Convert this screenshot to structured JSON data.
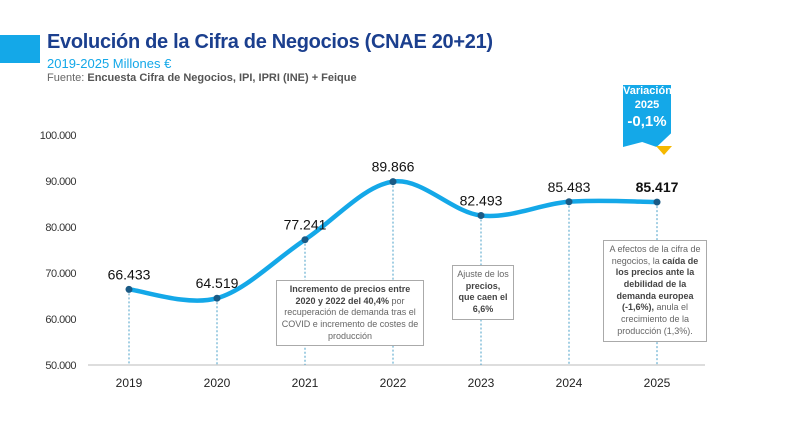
{
  "header": {
    "title": "Evolución de la Cifra de Negocios (CNAE 20+21)",
    "subtitle": "2019-2025 Millones €",
    "source_prefix": "Fuente: ",
    "source": "Encuesta Cifra de Negocios, IPI, IPRI (INE) + Feique"
  },
  "badge": {
    "line1": "Variación",
    "line2": "2025",
    "value": "-0,1%"
  },
  "annotations": {
    "a2021": {
      "b1": "Incremento de precios entre 2020 y 2022 del 40,4%",
      "t1": " por recuperación de demanda tras el COVID e incremento de costes de producción"
    },
    "a2023": {
      "t1": "Ajuste de los ",
      "b1": "precios, que caen el 6,6%"
    },
    "a2025": {
      "t1": "A efectos de la cifra de negocios, la ",
      "b1": "caída de los precios ante la debilidad de la demanda europea (-1,6%),",
      "t2": " anula el crecimiento de la producción (1,3%)."
    }
  },
  "chart_data": {
    "type": "line",
    "categories": [
      "2019",
      "2020",
      "2021",
      "2022",
      "2023",
      "2024",
      "2025"
    ],
    "values": [
      66433,
      64519,
      77241,
      89866,
      82493,
      85483,
      85417
    ],
    "labels": [
      "66.433",
      "64.519",
      "77.241",
      "89.866",
      "82.493",
      "85.483",
      "85.417"
    ],
    "yticks": [
      "50.000",
      "60.000",
      "70.000",
      "80.000",
      "90.000",
      "100.000"
    ],
    "ylim": [
      50000,
      100000
    ],
    "color": "#14a8e8"
  }
}
